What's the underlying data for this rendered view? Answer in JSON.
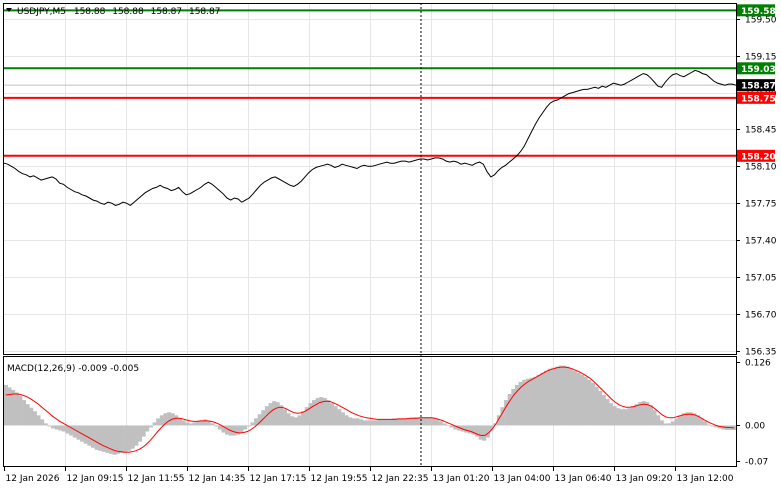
{
  "chart_data": [
    {
      "type": "line",
      "title": "USDJPY,M5",
      "ohlc": [
        "158.88",
        "158.88",
        "158.87",
        "158.87"
      ],
      "y_ticks": [
        "159.50",
        "159.15",
        "158.80",
        "158.45",
        "158.10",
        "157.75",
        "157.40",
        "157.05",
        "156.70",
        "156.35"
      ],
      "ylim": [
        156.32,
        159.64
      ],
      "x_ticks": [
        "12 Jan 2026",
        "12 Jan 09:15",
        "12 Jan 11:55",
        "12 Jan 14:35",
        "12 Jan 17:15",
        "12 Jan 19:55",
        "12 Jan 22:35",
        "13 Jan 01:20",
        "13 Jan 04:00",
        "13 Jan 06:40",
        "13 Jan 09:20",
        "13 Jan 12:00"
      ],
      "series": [
        {
          "name": "",
          "values": [
            158.13,
            158.12,
            158.1,
            158.08,
            158.05,
            158.03,
            158.02,
            158.0,
            158.01,
            157.99,
            157.97,
            157.98,
            157.99,
            158.0,
            157.98,
            157.94,
            157.93,
            157.9,
            157.88,
            157.86,
            157.85,
            157.83,
            157.82,
            157.8,
            157.78,
            157.77,
            157.75,
            157.74,
            157.76,
            157.75,
            157.73,
            157.74,
            157.76,
            157.75,
            157.73,
            157.76,
            157.79,
            157.82,
            157.85,
            157.87,
            157.89,
            157.9,
            157.92,
            157.9,
            157.89,
            157.87,
            157.88,
            157.9,
            157.86,
            157.83,
            157.84,
            157.86,
            157.88,
            157.9,
            157.93,
            157.95,
            157.93,
            157.9,
            157.87,
            157.84,
            157.8,
            157.78,
            157.8,
            157.79,
            157.76,
            157.78,
            157.8,
            157.84,
            157.88,
            157.92,
            157.95,
            157.97,
            157.99,
            158.0,
            157.98,
            157.96,
            157.94,
            157.92,
            157.91,
            157.93,
            157.96,
            158.0,
            158.04,
            158.07,
            158.09,
            158.1,
            158.11,
            158.12,
            158.11,
            158.09,
            158.1,
            158.12,
            158.11,
            158.1,
            158.09,
            158.08,
            158.1,
            158.11,
            158.1,
            158.1,
            158.11,
            158.12,
            158.13,
            158.14,
            158.13,
            158.13,
            158.14,
            158.15,
            158.15,
            158.14,
            158.15,
            158.16,
            158.17,
            158.17,
            158.16,
            158.17,
            158.18,
            158.18,
            158.17,
            158.15,
            158.14,
            158.15,
            158.14,
            158.12,
            158.13,
            158.12,
            158.11,
            158.13,
            158.14,
            158.12,
            158.05,
            158.0,
            158.02,
            158.06,
            158.09,
            158.11,
            158.14,
            158.17,
            158.2,
            158.24,
            158.29,
            158.36,
            158.43,
            158.5,
            158.56,
            158.61,
            158.66,
            158.7,
            158.72,
            158.73,
            158.75,
            158.77,
            158.79,
            158.8,
            158.81,
            158.82,
            158.83,
            158.83,
            158.84,
            158.85,
            158.84,
            158.86,
            158.85,
            158.87,
            158.89,
            158.88,
            158.87,
            158.88,
            158.9,
            158.92,
            158.94,
            158.96,
            158.98,
            158.97,
            158.94,
            158.9,
            158.86,
            158.85,
            158.9,
            158.94,
            158.97,
            158.98,
            158.96,
            158.95,
            158.97,
            158.99,
            159.01,
            159.0,
            158.98,
            158.97,
            158.94,
            158.91,
            158.89,
            158.88,
            158.87,
            158.88,
            158.88,
            158.87
          ]
        }
      ],
      "levels": [
        {
          "value": 159.58,
          "label": "159.58",
          "color": "#008000"
        },
        {
          "value": 159.03,
          "label": "159.03",
          "color": "#008000"
        },
        {
          "value": 158.75,
          "label": "158.75",
          "color": "#ff0000"
        },
        {
          "value": 158.2,
          "label": "158.20",
          "color": "#ff0000"
        }
      ],
      "current_price": {
        "value": 158.87,
        "label": "158.87",
        "color": "#000000"
      },
      "grid": true
    },
    {
      "type": "bar",
      "title": "MACD(12,26,9) -0.009 -0.005",
      "y_ticks": [
        "0.126",
        "0.00",
        "-0.07"
      ],
      "ylim": [
        -0.08,
        0.135
      ],
      "colors": {
        "histogram": "#c0c0c0",
        "signal": "#ff0000"
      },
      "series": [
        {
          "name": "",
          "values": [
            0.08,
            0.075,
            0.07,
            0.065,
            0.058,
            0.05,
            0.042,
            0.035,
            0.028,
            0.02,
            0.012,
            0.004,
            -0.002,
            -0.006,
            -0.008,
            -0.01,
            -0.012,
            -0.016,
            -0.02,
            -0.024,
            -0.028,
            -0.032,
            -0.036,
            -0.04,
            -0.044,
            -0.048,
            -0.05,
            -0.052,
            -0.054,
            -0.056,
            -0.058,
            -0.056,
            -0.054,
            -0.052,
            -0.05,
            -0.046,
            -0.04,
            -0.032,
            -0.022,
            -0.012,
            -0.004,
            0.006,
            0.014,
            0.02,
            0.024,
            0.026,
            0.024,
            0.02,
            0.015,
            0.01,
            0.006,
            0.004,
            0.006,
            0.008,
            0.01,
            0.012,
            0.008,
            0.004,
            -0.002,
            -0.008,
            -0.014,
            -0.018,
            -0.02,
            -0.02,
            -0.018,
            -0.014,
            -0.008,
            -0.002,
            0.006,
            0.014,
            0.022,
            0.03,
            0.038,
            0.044,
            0.048,
            0.046,
            0.04,
            0.032,
            0.024,
            0.018,
            0.016,
            0.02,
            0.028,
            0.036,
            0.044,
            0.05,
            0.054,
            0.056,
            0.054,
            0.05,
            0.044,
            0.038,
            0.032,
            0.026,
            0.02,
            0.016,
            0.014,
            0.014,
            0.012,
            0.01,
            0.01,
            0.01,
            0.01,
            0.012,
            0.012,
            0.012,
            0.012,
            0.014,
            0.014,
            0.014,
            0.014,
            0.014,
            0.015,
            0.016,
            0.016,
            0.016,
            0.016,
            0.016,
            0.014,
            0.012,
            0.008,
            0.004,
            0.0,
            -0.004,
            -0.008,
            -0.01,
            -0.012,
            -0.014,
            -0.016,
            -0.018,
            -0.022,
            -0.028,
            -0.03,
            -0.024,
            -0.01,
            0.004,
            0.02,
            0.036,
            0.05,
            0.062,
            0.072,
            0.08,
            0.086,
            0.09,
            0.092,
            0.094,
            0.096,
            0.1,
            0.104,
            0.108,
            0.112,
            0.114,
            0.116,
            0.118,
            0.118,
            0.116,
            0.112,
            0.108,
            0.104,
            0.1,
            0.096,
            0.09,
            0.084,
            0.076,
            0.068,
            0.06,
            0.052,
            0.044,
            0.038,
            0.034,
            0.032,
            0.032,
            0.034,
            0.038,
            0.042,
            0.046,
            0.048,
            0.046,
            0.04,
            0.03,
            0.02,
            0.01,
            0.004,
            0.004,
            0.008,
            0.014,
            0.02,
            0.024,
            0.026,
            0.026,
            0.024,
            0.02,
            0.014,
            0.008,
            0.002,
            -0.002,
            -0.004,
            -0.006,
            -0.008,
            -0.009,
            -0.009,
            -0.009
          ]
        },
        {
          "name": "",
          "values": [
            0.06,
            0.061,
            0.062,
            0.062,
            0.061,
            0.059,
            0.056,
            0.052,
            0.047,
            0.042,
            0.036,
            0.03,
            0.024,
            0.018,
            0.013,
            0.008,
            0.004,
            0.0,
            -0.004,
            -0.008,
            -0.012,
            -0.016,
            -0.02,
            -0.024,
            -0.028,
            -0.032,
            -0.036,
            -0.04,
            -0.043,
            -0.046,
            -0.049,
            -0.051,
            -0.052,
            -0.053,
            -0.053,
            -0.052,
            -0.05,
            -0.047,
            -0.043,
            -0.037,
            -0.03,
            -0.022,
            -0.013,
            -0.005,
            0.002,
            0.008,
            0.012,
            0.014,
            0.014,
            0.013,
            0.011,
            0.009,
            0.008,
            0.008,
            0.009,
            0.009,
            0.009,
            0.008,
            0.006,
            0.003,
            -0.001,
            -0.005,
            -0.009,
            -0.012,
            -0.014,
            -0.015,
            -0.014,
            -0.012,
            -0.008,
            -0.003,
            0.003,
            0.01,
            0.017,
            0.024,
            0.03,
            0.034,
            0.036,
            0.035,
            0.032,
            0.028,
            0.025,
            0.024,
            0.025,
            0.028,
            0.032,
            0.037,
            0.041,
            0.045,
            0.047,
            0.048,
            0.047,
            0.044,
            0.041,
            0.037,
            0.033,
            0.029,
            0.025,
            0.022,
            0.019,
            0.017,
            0.015,
            0.014,
            0.013,
            0.012,
            0.012,
            0.012,
            0.012,
            0.012,
            0.012,
            0.013,
            0.013,
            0.013,
            0.014,
            0.014,
            0.014,
            0.015,
            0.015,
            0.015,
            0.015,
            0.014,
            0.012,
            0.01,
            0.007,
            0.004,
            0.001,
            -0.002,
            -0.005,
            -0.008,
            -0.01,
            -0.012,
            -0.015,
            -0.018,
            -0.02,
            -0.019,
            -0.014,
            -0.006,
            0.004,
            0.016,
            0.028,
            0.04,
            0.051,
            0.061,
            0.069,
            0.076,
            0.082,
            0.087,
            0.091,
            0.095,
            0.099,
            0.103,
            0.107,
            0.11,
            0.112,
            0.114,
            0.115,
            0.115,
            0.114,
            0.112,
            0.109,
            0.106,
            0.102,
            0.098,
            0.093,
            0.087,
            0.08,
            0.073,
            0.066,
            0.059,
            0.052,
            0.046,
            0.041,
            0.038,
            0.036,
            0.036,
            0.037,
            0.039,
            0.041,
            0.042,
            0.041,
            0.038,
            0.033,
            0.027,
            0.021,
            0.017,
            0.015,
            0.015,
            0.017,
            0.019,
            0.021,
            0.022,
            0.022,
            0.021,
            0.018,
            0.014,
            0.01,
            0.006,
            0.003,
            0.0,
            -0.002,
            -0.003,
            -0.004,
            -0.004,
            -0.005
          ]
        }
      ]
    }
  ]
}
